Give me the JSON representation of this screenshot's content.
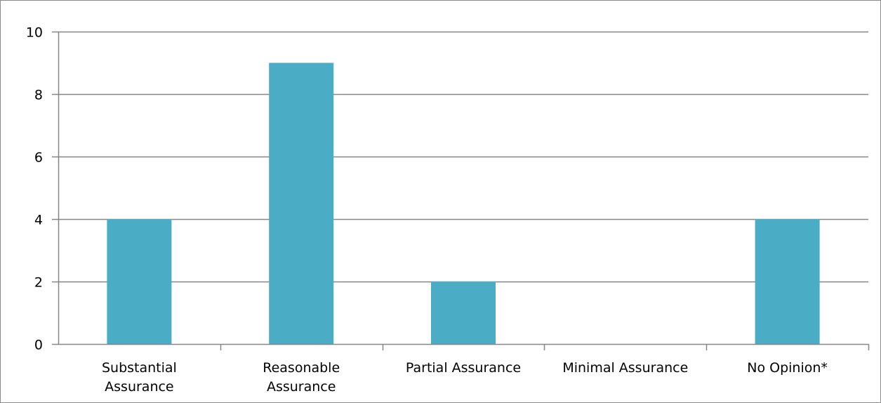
{
  "chart_data": {
    "type": "bar",
    "categories": [
      [
        "Substantial",
        "Assurance"
      ],
      [
        "Reasonable",
        "Assurance"
      ],
      [
        "Partial Assurance"
      ],
      [
        "Minimal Assurance"
      ],
      [
        "No Opinion*"
      ]
    ],
    "values": [
      4,
      9,
      2,
      0,
      4
    ],
    "ylim": [
      0,
      10
    ],
    "yticks": [
      0,
      2,
      4,
      6,
      8,
      10
    ],
    "grid": true,
    "legend": "none",
    "title": "",
    "xlabel": "",
    "ylabel": "",
    "colors": {
      "bar": "#4BACC6",
      "grid": "#868686",
      "axis": "#868686"
    }
  }
}
